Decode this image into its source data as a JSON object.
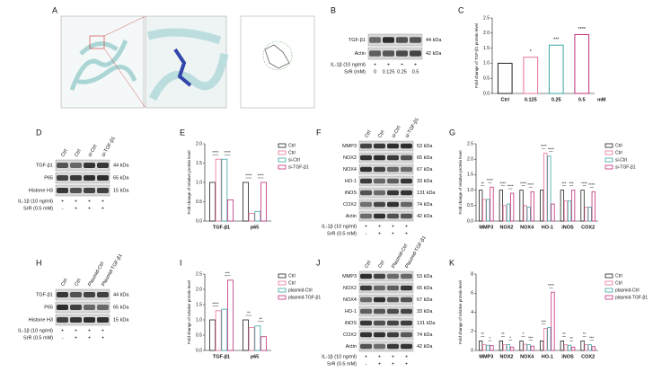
{
  "panels": {
    "labels": [
      "A",
      "B",
      "C",
      "D",
      "E",
      "F",
      "G",
      "H",
      "I",
      "J",
      "K"
    ]
  },
  "blots": [
    {
      "rows": [
        {
          "name": "TGF-β1",
          "size": "44 kDa"
        },
        {
          "name": "Actin",
          "size": "42 kDa"
        }
      ],
      "treatments": [
        {
          "name": "IL-1β (10 ng/ml)",
          "signs": [
            "+",
            "+",
            "+",
            "+"
          ]
        },
        {
          "name": "SrR (mM)",
          "signs": [
            "0",
            "0.125",
            "0.25",
            "0.5"
          ]
        }
      ]
    },
    {
      "lanes": [
        "Ctrl",
        "Ctrl",
        "si-Ctrl",
        "si-TGF-β1"
      ],
      "rows": [
        {
          "name": "TGF-β1",
          "size": "44 kDa"
        },
        {
          "name": "P65",
          "size": "65 kDa"
        },
        {
          "name": "Histone H3",
          "size": "15 kDa"
        }
      ],
      "treatments": [
        {
          "name": "IL-1β (10 ng/ml)",
          "signs": [
            "+",
            "+",
            "+",
            "+"
          ]
        },
        {
          "name": "SrR (0.5 mM)",
          "signs": [
            "-",
            "+",
            "+",
            "+"
          ]
        }
      ]
    },
    {
      "lanes": [
        "Ctrl",
        "Ctrl",
        "si-Ctrl",
        "si-TGF-β1"
      ],
      "rows": [
        {
          "name": "MMP3",
          "size": "53 kDa"
        },
        {
          "name": "NOX2",
          "size": "65 kDa"
        },
        {
          "name": "NOX4",
          "size": "67 kDa"
        },
        {
          "name": "HO-1",
          "size": "33 kDa"
        },
        {
          "name": "iNOS",
          "size": "131 kDa"
        },
        {
          "name": "COX2",
          "size": "74 kDa"
        },
        {
          "name": "Actin",
          "size": "42 kDa"
        }
      ],
      "treatments": [
        {
          "name": "IL-1β (10 ng/ml)",
          "signs": [
            "+",
            "+",
            "+",
            "+"
          ]
        },
        {
          "name": "SrR (0.5 mM)",
          "signs": [
            "-",
            "+",
            "+",
            "+"
          ]
        }
      ]
    },
    {
      "lanes": [
        "Ctrl",
        "Ctrl",
        "Plasmid-Ctrl",
        "Plasmid-TGF-β1"
      ],
      "rows": [
        {
          "name": "TGF-β1",
          "size": "44 kDa"
        },
        {
          "name": "P65",
          "size": "65 kDa"
        },
        {
          "name": "Histone H3",
          "size": "15 kDa"
        }
      ],
      "treatments": [
        {
          "name": "IL-1β (10 ng/ml)",
          "signs": [
            "+",
            "+",
            "+",
            "+"
          ]
        },
        {
          "name": "SrR (0.5 mM)",
          "signs": [
            "-",
            "+",
            "+",
            "+"
          ]
        }
      ]
    },
    {
      "lanes": [
        "Ctrl",
        "Ctrl",
        "Plasmid-Ctrl",
        "Plasmid-TGF-β1"
      ],
      "rows": [
        {
          "name": "MMP3",
          "size": "53 kDa"
        },
        {
          "name": "NOX2",
          "size": "65 kDa"
        },
        {
          "name": "NOX4",
          "size": "67 kDa"
        },
        {
          "name": "HO-1",
          "size": "33 kDa"
        },
        {
          "name": "iNOS",
          "size": "131 kDa"
        },
        {
          "name": "COX2",
          "size": "74 kDa"
        },
        {
          "name": "Actin",
          "size": "42 kDa"
        }
      ],
      "treatments": [
        {
          "name": "IL-1β (10 ng/ml)",
          "signs": [
            "+",
            "+",
            "+",
            "+"
          ]
        },
        {
          "name": "SrR (0.5 mM)",
          "signs": [
            "-",
            "+",
            "+",
            "+"
          ]
        }
      ]
    }
  ],
  "chart_data": [
    {
      "type": "bar",
      "ylabel": "Fold change of TGF-β1 protein level",
      "categories": [
        "Ctrl",
        "0.125",
        "0.25",
        "0.5"
      ],
      "unit": "mM",
      "values": [
        1.0,
        1.2,
        1.6,
        1.95
      ],
      "colors": [
        "#222222",
        "#e8739a",
        "#3aa5a5",
        "#c0307a"
      ],
      "value_annotations": [
        null,
        "*",
        "***",
        "****"
      ],
      "ylim": [
        0,
        2.5
      ],
      "yticks": [
        {
          "value": 0,
          "label": "0.0"
        },
        {
          "value": 0.5,
          "label": "0.5"
        },
        {
          "value": 1,
          "label": "1.0"
        },
        {
          "value": 1.5,
          "label": "1.5"
        },
        {
          "value": 2,
          "label": "2.0"
        },
        {
          "value": 2.5,
          "label": "2.5"
        }
      ]
    },
    {
      "type": "bar",
      "ylabel": "Fold change of relative protein level",
      "categories": [
        "TGF-β1",
        "p65"
      ],
      "series": [
        {
          "name": "Ctrl",
          "color": "#222222",
          "values": [
            1.0,
            1.0
          ]
        },
        {
          "name": "Ctrl",
          "color": "#e8739a",
          "values": [
            1.6,
            0.2
          ]
        },
        {
          "name": "si-Ctrl",
          "color": "#3aa5a5",
          "values": [
            1.6,
            0.25
          ]
        },
        {
          "name": "si-TGF-β1",
          "color": "#c0307a",
          "values": [
            0.55,
            1.0
          ]
        }
      ],
      "significance": [
        [
          "****",
          "****"
        ],
        [
          "****",
          "****"
        ]
      ],
      "ylim": [
        0,
        2
      ],
      "yticks": [
        {
          "value": 0,
          "label": "0.0"
        },
        {
          "value": 0.5,
          "label": "0.5"
        },
        {
          "value": 1,
          "label": "1.0"
        },
        {
          "value": 1.5,
          "label": "1.5"
        },
        {
          "value": 2,
          "label": "2.0"
        }
      ],
      "legend": "right"
    },
    {
      "type": "bar",
      "ylabel": "Fold change of relative protein level",
      "categories": [
        "MMP3",
        "NOX2",
        "NOX4",
        "HO-1",
        "iNOS",
        "COX2"
      ],
      "series": [
        {
          "name": "Ctrl",
          "color": "#222222",
          "values": [
            1.0,
            1.0,
            1.0,
            1.0,
            1.0,
            1.0
          ]
        },
        {
          "name": "Ctrl",
          "color": "#e8739a",
          "values": [
            0.7,
            0.5,
            0.5,
            2.2,
            0.65,
            0.45
          ]
        },
        {
          "name": "si-Ctrl",
          "color": "#3aa5a5",
          "values": [
            0.7,
            0.55,
            0.45,
            2.1,
            0.65,
            0.45
          ]
        },
        {
          "name": "si-TGF-β1",
          "color": "#c0307a",
          "values": [
            1.1,
            0.9,
            0.95,
            0.55,
            1.0,
            0.95
          ]
        }
      ],
      "significance": [
        [
          "**",
          "****"
        ],
        [
          "****",
          "****"
        ],
        [
          "****",
          "****"
        ],
        [
          "****",
          "****"
        ],
        [
          "***",
          "***"
        ],
        [
          "****",
          "****"
        ]
      ],
      "ylim": [
        0,
        2.5
      ],
      "yticks": [
        {
          "value": 0,
          "label": "0.0"
        },
        {
          "value": 0.5,
          "label": "0.5"
        },
        {
          "value": 1,
          "label": "1.0"
        },
        {
          "value": 1.5,
          "label": "1.5"
        },
        {
          "value": 2,
          "label": "2.0"
        },
        {
          "value": 2.5,
          "label": "2.5"
        }
      ],
      "legend": "right"
    },
    {
      "type": "bar",
      "ylabel": "Fold change of relative protein level",
      "categories": [
        "TGF-β1",
        "p65"
      ],
      "series": [
        {
          "name": "Ctrl",
          "color": "#222222",
          "values": [
            1.0,
            1.0
          ]
        },
        {
          "name": "Ctrl",
          "color": "#e8739a",
          "values": [
            1.3,
            0.75
          ]
        },
        {
          "name": "plasmid-Ctrl",
          "color": "#3aa5a5",
          "values": [
            1.35,
            0.8
          ]
        },
        {
          "name": "plasmid-TGF-β1",
          "color": "#c0307a",
          "values": [
            2.3,
            0.45
          ]
        }
      ],
      "significance": [
        [
          "****",
          "***"
        ],
        [
          "**",
          "**"
        ]
      ],
      "ylim": [
        0,
        2.5
      ],
      "yticks": [
        {
          "value": 0,
          "label": "0.0"
        },
        {
          "value": 0.5,
          "label": "0.5"
        },
        {
          "value": 1,
          "label": "1.0"
        },
        {
          "value": 1.5,
          "label": "1.5"
        },
        {
          "value": 2,
          "label": "2.0"
        },
        {
          "value": 2.5,
          "label": "2.5"
        }
      ],
      "legend": "right"
    },
    {
      "type": "bar",
      "ylabel": "Fold change of relative protein level",
      "categories": [
        "MMP3",
        "NOX2",
        "NOX4",
        "HO-1",
        "iNOS",
        "COX2"
      ],
      "series": [
        {
          "name": "Ctrl",
          "color": "#222222",
          "values": [
            1.0,
            1.0,
            1.0,
            1.0,
            1.0,
            1.0
          ]
        },
        {
          "name": "Ctrl",
          "color": "#e8739a",
          "values": [
            0.6,
            0.6,
            0.65,
            2.3,
            0.6,
            0.6
          ]
        },
        {
          "name": "plasmid-Ctrl",
          "color": "#3aa5a5",
          "values": [
            0.55,
            0.6,
            0.6,
            2.4,
            0.55,
            0.6
          ]
        },
        {
          "name": "plasmid-TGF-β1",
          "color": "#c0307a",
          "values": [
            0.5,
            0.35,
            0.45,
            6.1,
            0.35,
            0.4
          ]
        }
      ],
      "significance": [
        [
          "**",
          "*"
        ],
        [
          "**",
          "*"
        ],
        [
          "*",
          "***"
        ],
        [
          "***",
          "****"
        ],
        [
          "**",
          "**"
        ],
        [
          "**",
          "***"
        ]
      ],
      "ylim": [
        0,
        8
      ],
      "yticks": [
        0,
        2,
        4,
        6,
        8
      ],
      "legend": "right"
    }
  ]
}
